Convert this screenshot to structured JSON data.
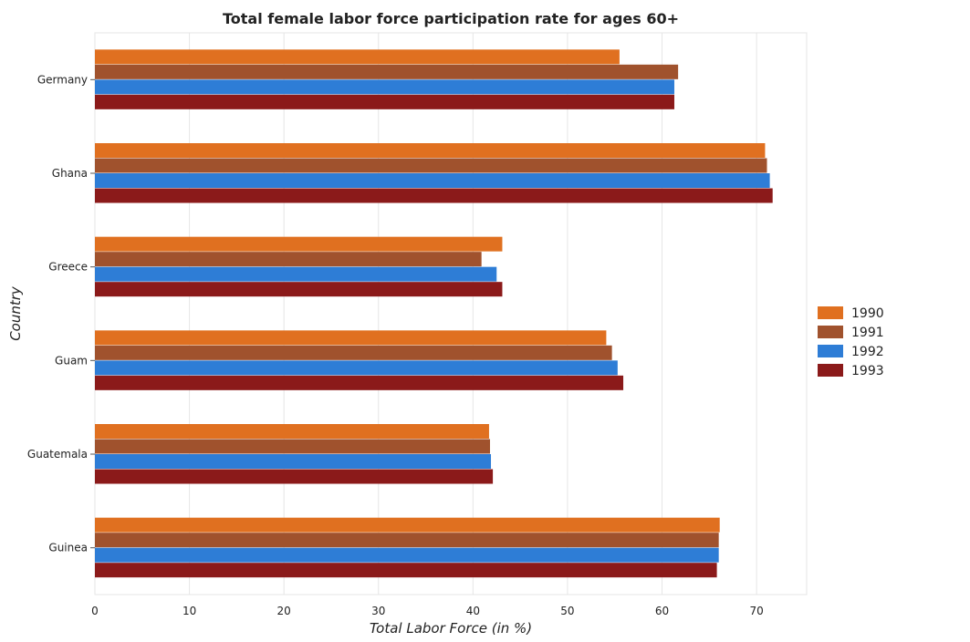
{
  "chart_data": {
    "type": "bar",
    "orientation": "horizontal",
    "title": "Total female labor force participation rate for ages 60+",
    "xlabel": "Total Labor Force (in %)",
    "ylabel": "Country",
    "xlim": [
      0,
      75.3
    ],
    "xticks": [
      0,
      10,
      20,
      30,
      40,
      50,
      60,
      70
    ],
    "grid": true,
    "legend_position": "right",
    "categories": [
      "Germany",
      "Ghana",
      "Greece",
      "Guam",
      "Guatemala",
      "Guinea"
    ],
    "series": [
      {
        "name": "1990",
        "color": "#e07020",
        "values": [
          55.5,
          70.9,
          43.1,
          54.1,
          41.7,
          66.1
        ]
      },
      {
        "name": "1991",
        "color": "#a0522d",
        "values": [
          61.7,
          71.1,
          40.9,
          54.7,
          41.8,
          66.0
        ]
      },
      {
        "name": "1992",
        "color": "#2e7dd6",
        "values": [
          61.3,
          71.4,
          42.5,
          55.3,
          41.9,
          66.0
        ]
      },
      {
        "name": "1993",
        "color": "#8b1a1a",
        "values": [
          61.3,
          71.7,
          43.1,
          55.9,
          42.1,
          65.8
        ]
      }
    ]
  }
}
